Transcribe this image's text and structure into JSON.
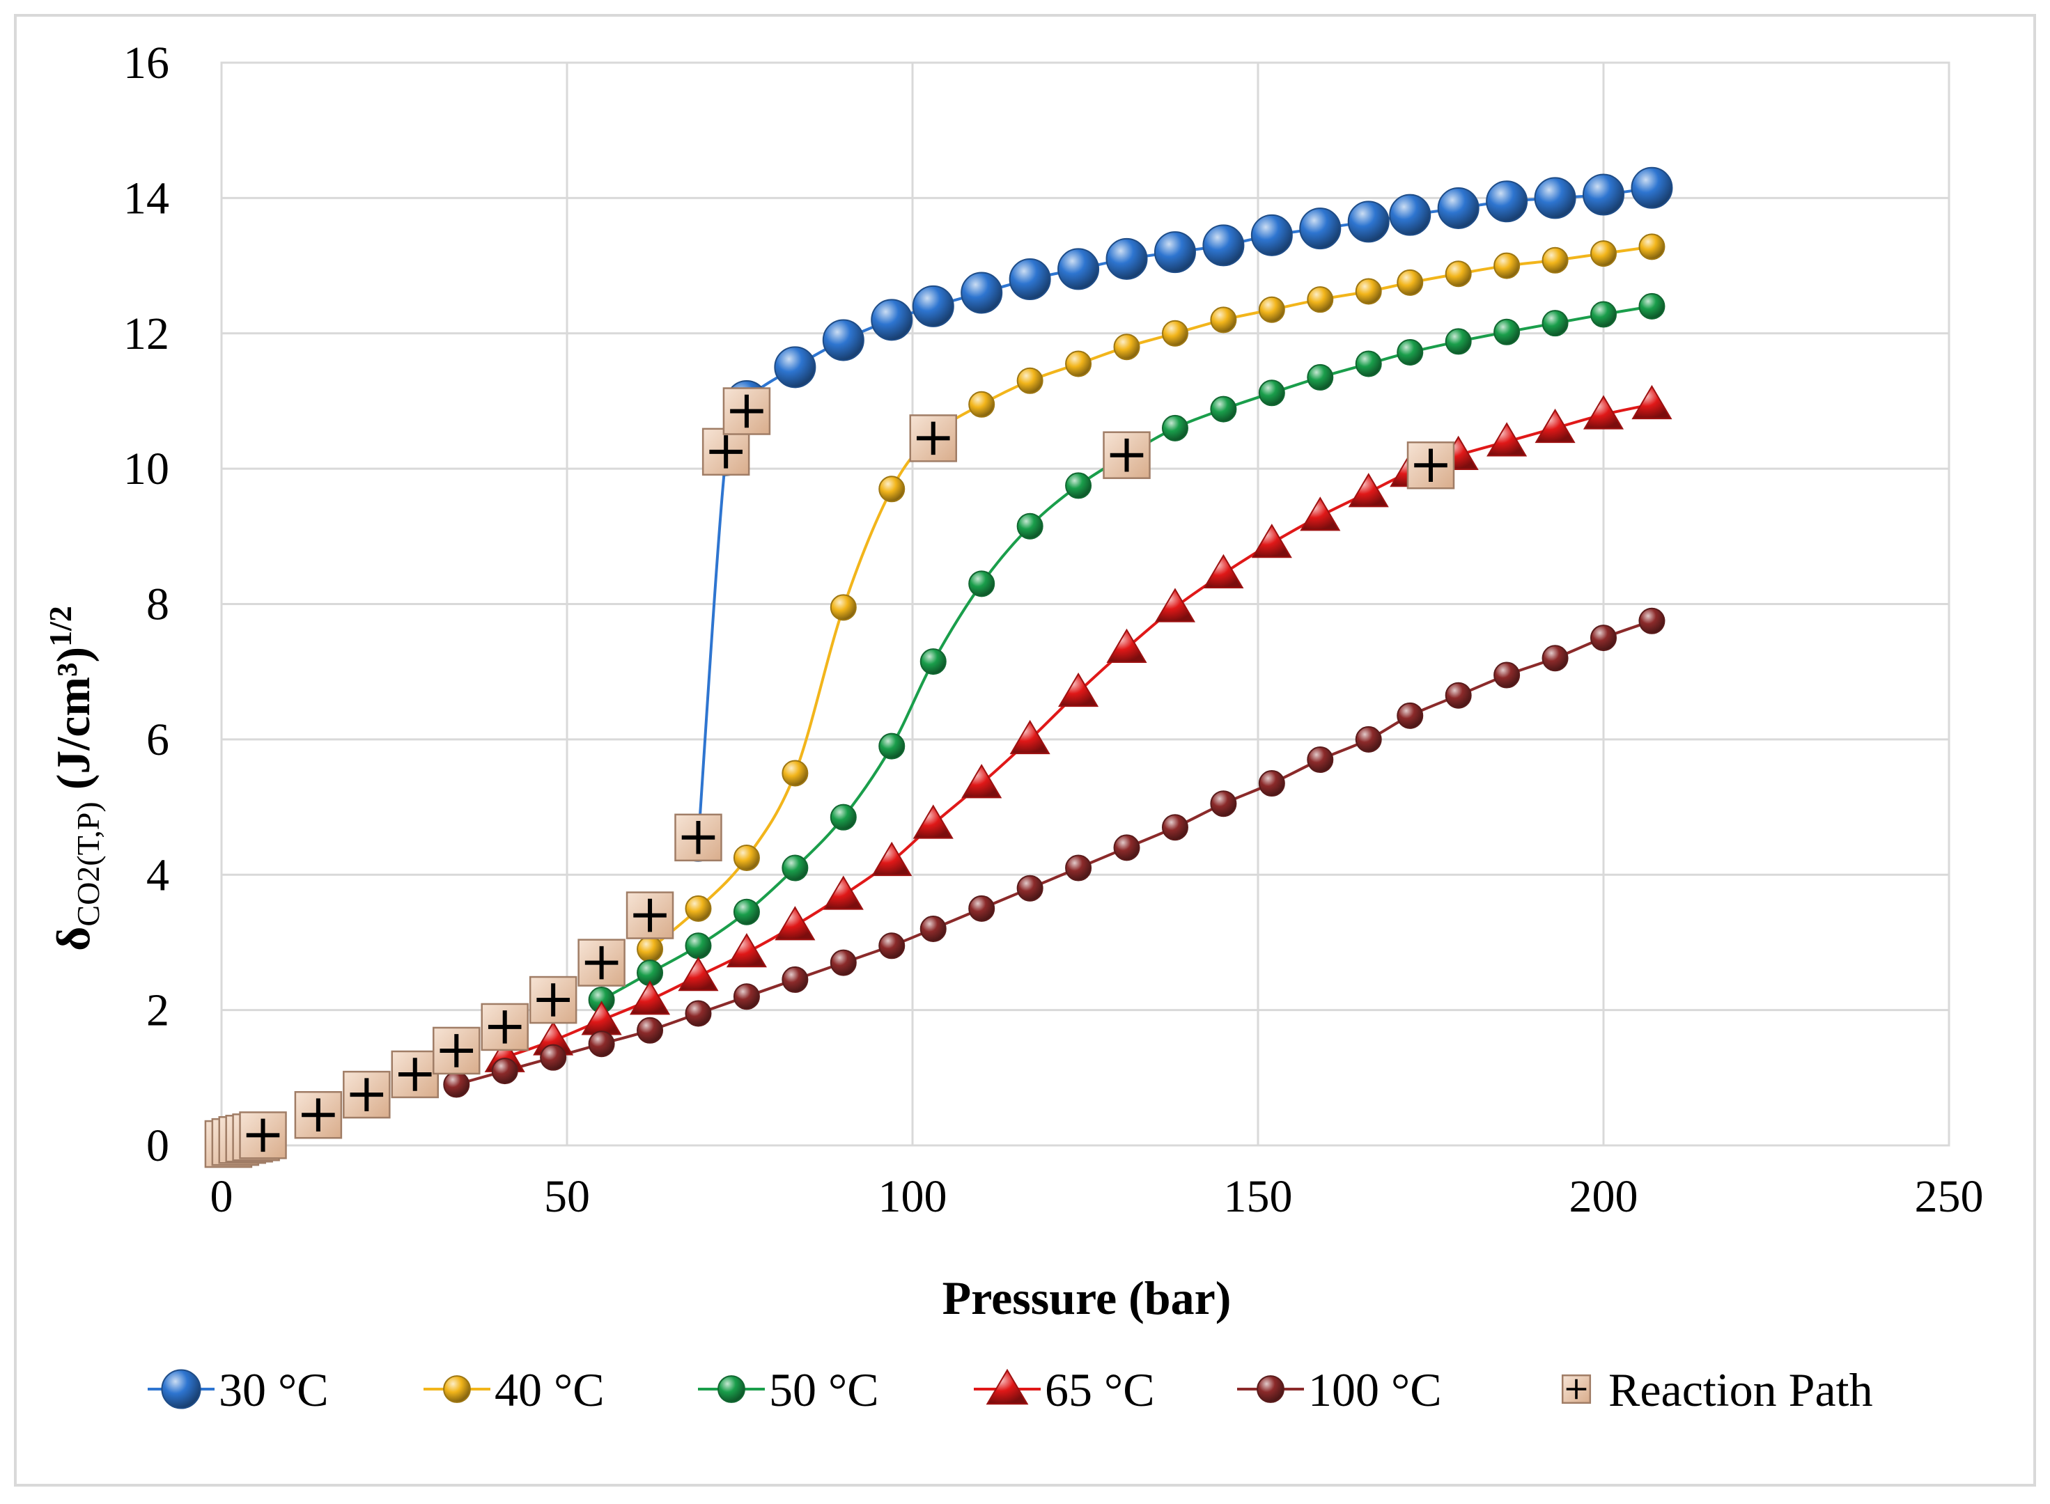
{
  "chart_data": {
    "type": "line",
    "title": "",
    "xlabel": "Pressure (bar)",
    "ylabel": {
      "main": "δ",
      "sub": "CO2(T,P)",
      "unit": " (J/cm³)",
      "sup": "1/2"
    },
    "xlim": [
      0,
      250
    ],
    "ylim": [
      0,
      16
    ],
    "x_ticks": [
      "0",
      "50",
      "100",
      "150",
      "200",
      "250"
    ],
    "y_ticks": [
      "0",
      "2",
      "4",
      "6",
      "8",
      "10",
      "12",
      "14",
      "16"
    ],
    "grid": true,
    "legend_position": "bottom",
    "series": [
      {
        "name": "30 °C",
        "color": "#2E75D0",
        "marker": "sphere",
        "x": [
          69,
          73,
          76,
          83,
          90,
          97,
          103,
          110,
          117,
          124,
          131,
          138,
          145,
          152,
          159,
          166,
          172,
          179,
          186,
          193,
          200,
          207
        ],
        "y": [
          4.5,
          10.2,
          11.0,
          11.5,
          11.9,
          12.2,
          12.4,
          12.6,
          12.8,
          12.95,
          13.1,
          13.2,
          13.3,
          13.45,
          13.55,
          13.65,
          13.75,
          13.85,
          13.95,
          14.0,
          14.05,
          14.15
        ]
      },
      {
        "name": "40 °C",
        "color": "#F2B51B",
        "marker": "sphere-small",
        "x": [
          62,
          69,
          76,
          83,
          90,
          97,
          103,
          110,
          117,
          124,
          131,
          138,
          145,
          152,
          159,
          166,
          172,
          179,
          186,
          193,
          200,
          207
        ],
        "y": [
          2.9,
          3.5,
          4.25,
          5.5,
          7.95,
          9.7,
          10.5,
          10.95,
          11.3,
          11.55,
          11.8,
          12.0,
          12.2,
          12.35,
          12.5,
          12.62,
          12.75,
          12.88,
          13.0,
          13.08,
          13.18,
          13.28
        ]
      },
      {
        "name": "50 °C",
        "color": "#1A9E4B",
        "marker": "sphere-small",
        "x": [
          55,
          62,
          69,
          76,
          83,
          90,
          97,
          103,
          110,
          117,
          124,
          131,
          138,
          145,
          152,
          159,
          166,
          172,
          179,
          186,
          193,
          200,
          207
        ],
        "y": [
          2.15,
          2.55,
          2.95,
          3.45,
          4.1,
          4.85,
          5.9,
          7.15,
          8.3,
          9.15,
          9.75,
          10.2,
          10.6,
          10.88,
          11.12,
          11.35,
          11.55,
          11.72,
          11.88,
          12.02,
          12.15,
          12.28,
          12.4
        ]
      },
      {
        "name": "65 °C",
        "color": "#E01818",
        "marker": "triangle",
        "x": [
          41,
          48,
          55,
          62,
          69,
          76,
          83,
          90,
          97,
          103,
          110,
          117,
          124,
          131,
          138,
          145,
          152,
          159,
          166,
          172,
          179,
          186,
          193,
          200,
          207
        ],
        "y": [
          1.3,
          1.55,
          1.85,
          2.15,
          2.5,
          2.85,
          3.25,
          3.7,
          4.2,
          4.75,
          5.35,
          6.0,
          6.7,
          7.35,
          7.95,
          8.45,
          8.9,
          9.3,
          9.65,
          9.95,
          10.2,
          10.4,
          10.6,
          10.8,
          10.95
        ]
      },
      {
        "name": "100 °C",
        "color": "#8B2A2A",
        "marker": "sphere-small",
        "x": [
          34,
          41,
          48,
          55,
          62,
          69,
          76,
          83,
          90,
          97,
          103,
          110,
          117,
          124,
          131,
          138,
          145,
          152,
          159,
          166,
          172,
          179,
          186,
          193,
          200,
          207
        ],
        "y": [
          0.9,
          1.1,
          1.3,
          1.5,
          1.7,
          1.95,
          2.2,
          2.45,
          2.7,
          2.95,
          3.2,
          3.5,
          3.8,
          4.1,
          4.4,
          4.7,
          5.05,
          5.35,
          5.7,
          6.0,
          6.35,
          6.65,
          6.95,
          7.2,
          7.5,
          7.75
        ]
      },
      {
        "name": "Reaction Path",
        "color": "#E8C4A8",
        "marker": "plus-square",
        "x": [
          1,
          2,
          3,
          4,
          5,
          6,
          14,
          21,
          28,
          34,
          41,
          48,
          55,
          62,
          69,
          73,
          76,
          103,
          131,
          175
        ],
        "y": [
          0.02,
          0.05,
          0.08,
          0.1,
          0.12,
          0.15,
          0.45,
          0.75,
          1.05,
          1.4,
          1.75,
          2.15,
          2.7,
          3.4,
          4.55,
          10.25,
          10.85,
          10.45,
          10.2,
          10.05
        ]
      }
    ]
  }
}
